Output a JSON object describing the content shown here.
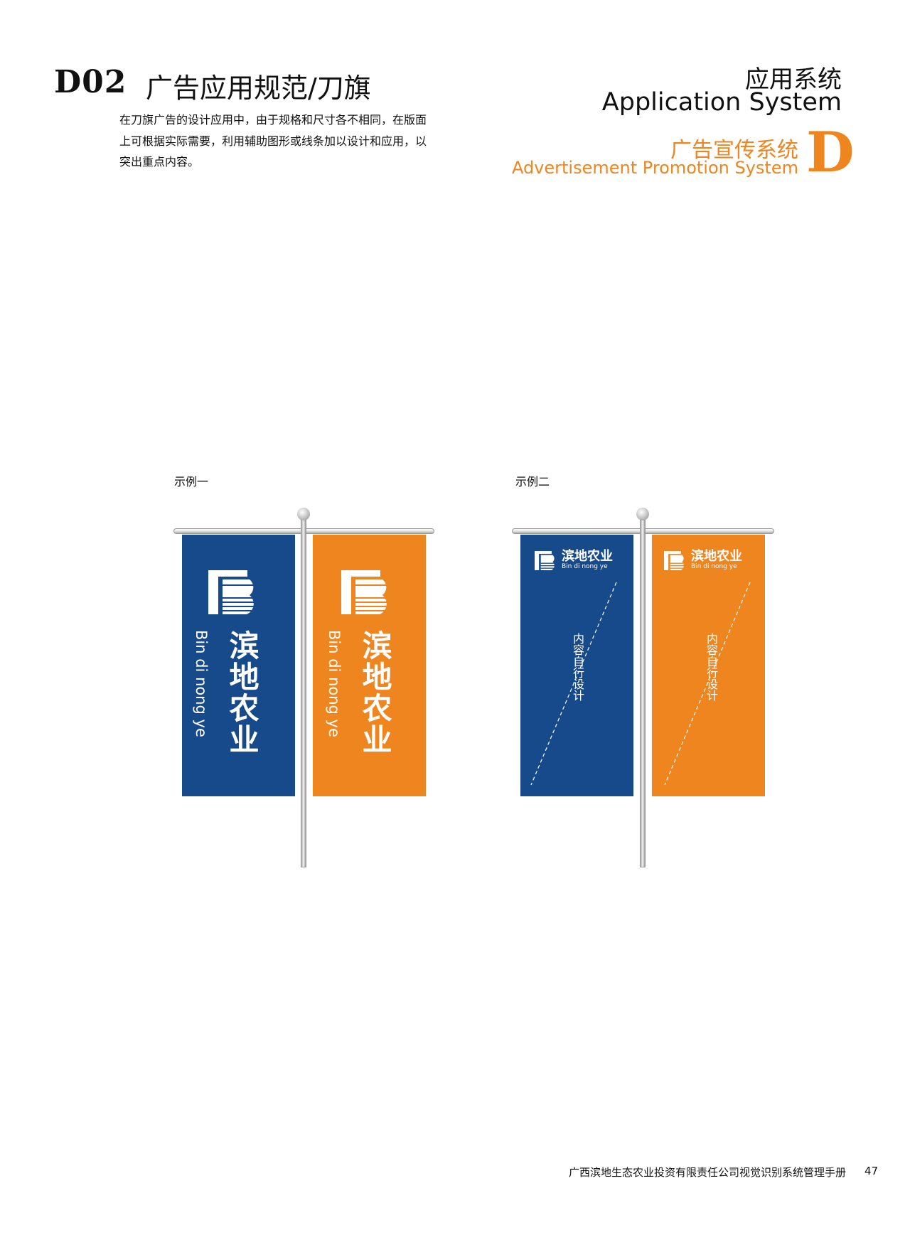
{
  "header": {
    "code": "D02",
    "title": "广告应用规范/刀旗",
    "description_lines": [
      "在刀旗广告的设计应用中，由于规格和尺寸各不相同，在版面",
      "上可根据实际需要，利用辅助图形或线条加以设计和应用，以",
      "突出重点内容。"
    ]
  },
  "section": {
    "system_cn": "应用系统",
    "system_en": "Application System",
    "sub_cn": "广告宣传系统",
    "sub_en": "Advertisement Promotion System",
    "letter": "D"
  },
  "examples": [
    {
      "label": "示例一",
      "brand_cn": "滨地农业",
      "brand_en": "Bin di nong ye"
    },
    {
      "label": "示例二",
      "brand_cn": "滨地农业",
      "brand_en": "Bin di nong ye",
      "placeholder": "内容自行设计"
    }
  ],
  "colors": {
    "blue": "#164a8a",
    "orange": "#ef851f"
  },
  "footer": {
    "text": "广西滨地生态农业投资有限责任公司视觉识别系统管理手册",
    "page": "47"
  }
}
